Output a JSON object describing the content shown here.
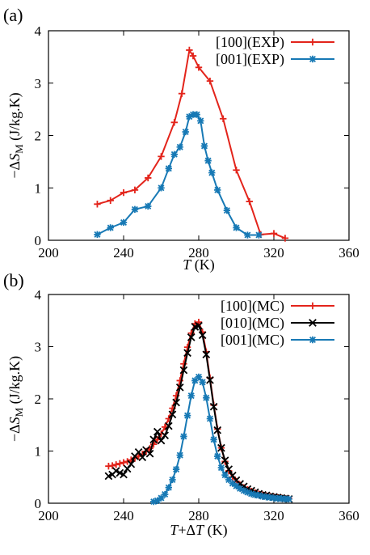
{
  "chart_data": [
    {
      "type": "line",
      "panel_label": "(a)",
      "xlabel_italic": "T",
      "xlabel_rest": " (K)",
      "ylabel_prefix": "−Δ",
      "ylabel_italic": "S",
      "ylabel_sub": "M",
      "ylabel_rest": " (J/kg.K)",
      "xlim": [
        200,
        360
      ],
      "ylim": [
        0,
        4
      ],
      "xticks": [
        200,
        240,
        280,
        320,
        360
      ],
      "yticks": [
        0,
        1,
        2,
        3,
        4
      ],
      "legend_position": "top-right",
      "series": [
        {
          "name": "[100](EXP)",
          "color": "#e3241b",
          "marker": "plus",
          "x": [
            226,
            233,
            240,
            246,
            253,
            260,
            267,
            271,
            275,
            277,
            280,
            286,
            293,
            300,
            307,
            313,
            320,
            326
          ],
          "y": [
            0.69,
            0.76,
            0.91,
            0.96,
            1.19,
            1.6,
            2.25,
            2.8,
            3.63,
            3.52,
            3.3,
            3.04,
            2.32,
            1.34,
            0.74,
            0.11,
            0.13,
            0.04
          ]
        },
        {
          "name": "[001](EXP)",
          "color": "#1779b5",
          "marker": "star",
          "x": [
            226,
            233,
            240,
            246,
            253,
            260,
            264,
            267,
            270,
            273,
            275,
            277,
            279,
            281,
            283,
            285,
            287,
            290,
            295,
            300,
            306,
            312
          ],
          "y": [
            0.11,
            0.24,
            0.34,
            0.59,
            0.65,
            1.0,
            1.37,
            1.64,
            1.78,
            2.07,
            2.36,
            2.4,
            2.4,
            2.28,
            1.8,
            1.52,
            1.29,
            0.96,
            0.57,
            0.24,
            0.1,
            0.1
          ]
        }
      ]
    },
    {
      "type": "line",
      "panel_label": "(b)",
      "xlabel_italic": "T",
      "xlabel_mid": "+Δ",
      "xlabel_italic2": "T",
      "xlabel_rest": " (K)",
      "ylabel_prefix": "−Δ",
      "ylabel_italic": "S",
      "ylabel_sub": "M",
      "ylabel_rest": " (J/kg.K)",
      "xlim": [
        200,
        360
      ],
      "ylim": [
        0,
        4
      ],
      "xticks": [
        200,
        240,
        280,
        320,
        360
      ],
      "yticks": [
        0,
        1,
        2,
        3,
        4
      ],
      "legend_position": "top-right",
      "series": [
        {
          "name": "[100](MC)",
          "color": "#e3241b",
          "marker": "plus",
          "x": [
            232,
            234,
            236,
            238,
            240,
            242,
            244,
            246,
            248,
            250,
            252,
            254,
            256,
            258,
            260,
            262,
            264,
            266,
            268,
            270,
            272,
            274,
            276,
            278,
            280,
            282,
            284,
            286,
            288,
            290,
            292,
            294,
            296,
            298,
            300,
            302,
            304,
            306,
            308,
            310,
            312,
            314,
            316,
            318,
            320,
            322,
            324,
            326,
            328
          ],
          "y": [
            0.71,
            0.72,
            0.74,
            0.76,
            0.78,
            0.8,
            0.83,
            0.86,
            0.9,
            0.94,
            0.99,
            1.05,
            1.13,
            1.22,
            1.33,
            1.46,
            1.62,
            1.82,
            2.06,
            2.35,
            2.67,
            2.99,
            3.26,
            3.44,
            3.47,
            3.28,
            2.9,
            2.4,
            1.88,
            1.42,
            1.06,
            0.8,
            0.62,
            0.5,
            0.42,
            0.35,
            0.3,
            0.26,
            0.23,
            0.2,
            0.18,
            0.16,
            0.14,
            0.13,
            0.12,
            0.11,
            0.1,
            0.09,
            0.09
          ]
        },
        {
          "name": "[010](MC)",
          "color": "#000000",
          "marker": "cross",
          "x": [
            232,
            234,
            236,
            238,
            240,
            242,
            244,
            246,
            248,
            250,
            252,
            254,
            256,
            258,
            260,
            262,
            264,
            266,
            268,
            270,
            272,
            274,
            276,
            278,
            280,
            282,
            284,
            286,
            288,
            290,
            292,
            294,
            296,
            298,
            300,
            302,
            304,
            306,
            308,
            310,
            312,
            314,
            316,
            318,
            320,
            322,
            324,
            326,
            328
          ],
          "y": [
            0.52,
            0.55,
            0.62,
            0.58,
            0.55,
            0.66,
            0.75,
            0.9,
            0.98,
            0.88,
            1.02,
            0.95,
            1.22,
            1.37,
            1.2,
            1.3,
            1.48,
            1.7,
            1.93,
            2.22,
            2.55,
            2.88,
            3.18,
            3.38,
            3.4,
            3.22,
            2.85,
            2.36,
            1.85,
            1.4,
            1.06,
            0.82,
            0.65,
            0.53,
            0.44,
            0.37,
            0.32,
            0.27,
            0.24,
            0.21,
            0.18,
            0.16,
            0.15,
            0.13,
            0.12,
            0.11,
            0.1,
            0.09,
            0.08
          ]
        },
        {
          "name": "[001](MC)",
          "color": "#1779b5",
          "marker": "star",
          "x": [
            256,
            258,
            260,
            262,
            264,
            266,
            268,
            270,
            272,
            274,
            276,
            278,
            280,
            282,
            284,
            286,
            288,
            290,
            292,
            294,
            296,
            298,
            300,
            302,
            304,
            306,
            308,
            310,
            312,
            314,
            316,
            318,
            320,
            322,
            324,
            326,
            328
          ],
          "y": [
            0.03,
            0.05,
            0.1,
            0.17,
            0.3,
            0.45,
            0.65,
            0.92,
            1.28,
            1.68,
            2.06,
            2.35,
            2.42,
            2.32,
            2.02,
            1.62,
            1.22,
            0.9,
            0.68,
            0.54,
            0.45,
            0.38,
            0.33,
            0.28,
            0.24,
            0.21,
            0.18,
            0.16,
            0.15,
            0.13,
            0.12,
            0.11,
            0.1,
            0.09,
            0.09,
            0.08,
            0.08
          ]
        }
      ]
    }
  ]
}
